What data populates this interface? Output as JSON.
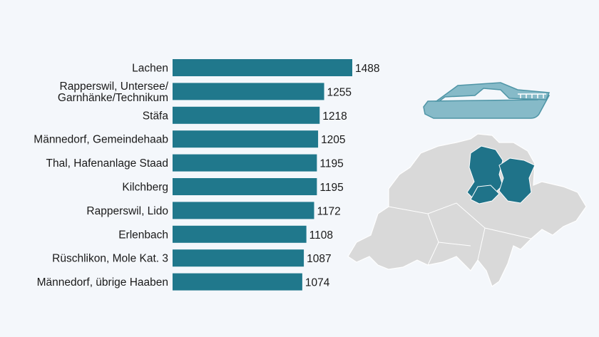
{
  "chart_data": {
    "type": "bar",
    "orientation": "horizontal",
    "categories": [
      "Lachen",
      "Rapperswil, Untersee/\nGarnhänke/Technikum",
      "Stäfa",
      "Männedorf, Gemeindehaab",
      "Thal, Hafenanlage Staad",
      "Kilchberg",
      "Rapperswil, Lido",
      "Erlenbach",
      "Rüschlikon, Mole Kat. 3",
      "Männedorf, übrige Haaben"
    ],
    "values": [
      1488,
      1255,
      1218,
      1205,
      1195,
      1195,
      1172,
      1108,
      1087,
      1074
    ],
    "xlim": [
      0,
      1488
    ],
    "grid": false,
    "data_labels": true,
    "bar_color": "#20788c"
  },
  "decor": {
    "boat_icon": "motor-yacht-icon",
    "boat_color": "#86bac8",
    "map": "switzerland-cantons-map",
    "map_color": "#d9d9d9",
    "highlight_color": "#1f7389"
  }
}
